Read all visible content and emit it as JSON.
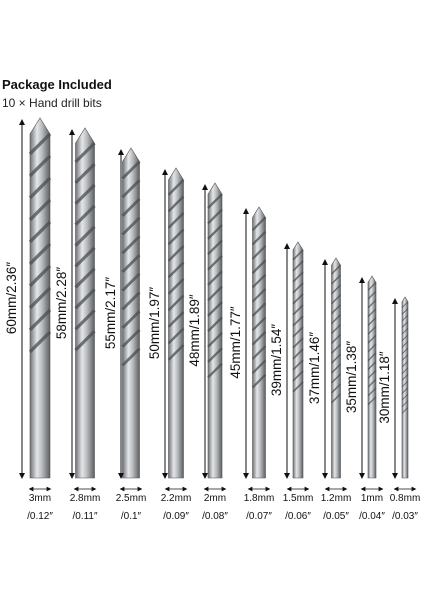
{
  "header": {
    "title": "Package Included",
    "subtitle": "10 × Hand drill bits"
  },
  "bits": [
    {
      "length": "60mm/2.36″",
      "diameter": "3mm",
      "diameter_inch": "/0.12″"
    },
    {
      "length": "58mm/2.28″",
      "diameter": "2.8mm",
      "diameter_inch": "/0.11″"
    },
    {
      "length": "55mm/2.17″",
      "diameter": "2.5mm",
      "diameter_inch": "/0.1″"
    },
    {
      "length": "50mm/1.97″",
      "diameter": "2.2mm",
      "diameter_inch": "/0.09″"
    },
    {
      "length": "48mm/1.89″",
      "diameter": "2mm",
      "diameter_inch": "/0.08″"
    },
    {
      "length": "45mm/1.77″",
      "diameter": "1.8mm",
      "diameter_inch": "/0.07″"
    },
    {
      "length": "39mm/1.54″",
      "diameter": "1.5mm",
      "diameter_inch": "/0.06″"
    },
    {
      "length": "37mm/1.46″",
      "diameter": "1.2mm",
      "diameter_inch": "/0.05″"
    },
    {
      "length": "35mm/1.38″",
      "diameter": "1mm",
      "diameter_inch": "/0.04″"
    },
    {
      "length": "30mm/1.18″",
      "diameter": "0.8mm",
      "diameter_inch": "/0.03″"
    }
  ]
}
